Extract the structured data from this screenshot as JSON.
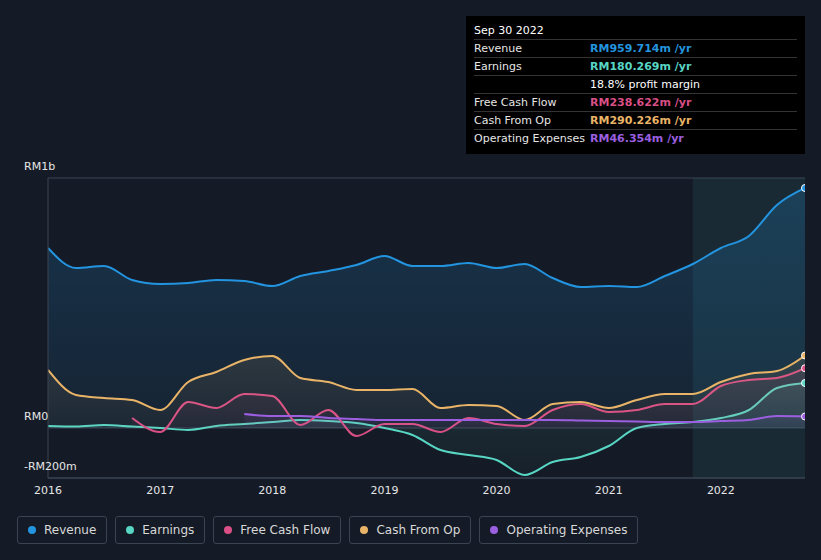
{
  "chart_data": {
    "type": "area",
    "x": [
      2016,
      2016.25,
      2016.5,
      2016.75,
      2017,
      2017.25,
      2017.5,
      2017.75,
      2018,
      2018.25,
      2018.5,
      2018.75,
      2019,
      2019.25,
      2019.5,
      2019.75,
      2020,
      2020.25,
      2020.5,
      2020.75,
      2021,
      2021.25,
      2021.5,
      2021.75,
      2022,
      2022.25,
      2022.5,
      2022.75
    ],
    "series": [
      {
        "name": "Revenue",
        "color": "#2394df",
        "values": [
          720,
          640,
          648,
          592,
          576,
          580,
          592,
          588,
          568,
          608,
          628,
          652,
          688,
          648,
          648,
          660,
          640,
          656,
          600,
          564,
          568,
          564,
          608,
          656,
          720,
          768,
          892,
          960
        ]
      },
      {
        "name": "Earnings",
        "color": "#58d6c4",
        "values": [
          8,
          6,
          12,
          6,
          0,
          -8,
          8,
          16,
          24,
          32,
          28,
          20,
          0,
          -28,
          -88,
          -108,
          -128,
          -188,
          -136,
          -116,
          -72,
          0,
          16,
          24,
          40,
          72,
          160,
          180
        ]
      },
      {
        "name": "Free Cash Flow",
        "color": "#d94f86",
        "values": [
          null,
          null,
          null,
          40,
          -16,
          104,
          80,
          136,
          128,
          12,
          72,
          -32,
          16,
          16,
          -16,
          40,
          16,
          8,
          72,
          96,
          64,
          72,
          96,
          96,
          168,
          192,
          200,
          239
        ]
      },
      {
        "name": "Cash From Op",
        "color": "#e9b468",
        "values": [
          232,
          132,
          120,
          112,
          72,
          184,
          224,
          272,
          288,
          200,
          184,
          152,
          152,
          156,
          80,
          92,
          88,
          32,
          96,
          104,
          80,
          112,
          136,
          136,
          184,
          216,
          228,
          290
        ]
      },
      {
        "name": "Operating Expenses",
        "color": "#9b5fe0",
        "values": [
          null,
          null,
          null,
          null,
          null,
          null,
          null,
          56,
          48,
          48,
          40,
          36,
          32,
          32,
          32,
          32,
          32,
          32,
          32,
          30,
          28,
          26,
          24,
          24,
          28,
          32,
          48,
          46
        ]
      }
    ],
    "xlim": [
      2016,
      2022.75
    ],
    "xticks": [
      2016,
      2017,
      2018,
      2019,
      2020,
      2021,
      2022
    ],
    "ylim": [
      -200,
      1000
    ],
    "yticks": [
      {
        "value": -200,
        "label": "-RM200m"
      },
      {
        "value": 0,
        "label": "RM0"
      },
      {
        "value": 1000,
        "label": "RM1b"
      }
    ],
    "grid": true,
    "legend": "bottom",
    "shaded_x": [
      2021.75,
      2022.75
    ],
    "annotation_box": {
      "title": "Sep 30 2022",
      "rows": [
        {
          "label": "Revenue",
          "value": "RM959.714m /yr",
          "color": "#2394df"
        },
        {
          "label": "Earnings",
          "value": "RM180.269m /yr",
          "color": "#58d6c4"
        },
        {
          "value": "18.8% profit margin",
          "color": "#ffffff"
        },
        {
          "label": "Free Cash Flow",
          "value": "RM238.622m /yr",
          "color": "#d94f86"
        },
        {
          "label": "Cash From Op",
          "value": "RM290.226m /yr",
          "color": "#e9b468"
        },
        {
          "label": "Operating Expenses",
          "value": "RM46.354m /yr",
          "color": "#9b5fe0"
        }
      ]
    }
  }
}
